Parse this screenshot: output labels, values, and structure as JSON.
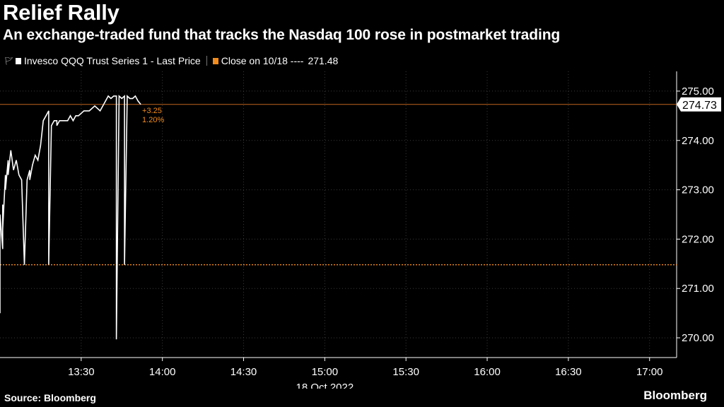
{
  "header": {
    "title": "Relief Rally",
    "subtitle": "An exchange-traded fund that tracks the Nasdaq 100 rose in postmarket trading"
  },
  "legend": {
    "series_label": "Invesco QQQ Trust Series 1 - Last Price",
    "close_label": "Close on 10/18 ----",
    "close_value": "271.48"
  },
  "footer": {
    "source": "Source: Bloomberg",
    "brand": "Bloomberg"
  },
  "colors": {
    "background": "#000000",
    "series": "#ffffff",
    "close_line": "#f28c1e",
    "grid": "#3a3a3a",
    "text": "#ffffff"
  },
  "chart_data": {
    "type": "line",
    "xlabel": "18 Oct 2022",
    "ylabel": "",
    "xlim": [
      "13:00",
      "17:10"
    ],
    "ylim": [
      269.6,
      275.4
    ],
    "x_ticks": [
      "13:30",
      "14:00",
      "14:30",
      "15:00",
      "15:30",
      "16:00",
      "16:30",
      "17:00"
    ],
    "y_ticks": [
      270,
      271,
      272,
      273,
      274,
      275
    ],
    "y_tick_labels": [
      "270.00",
      "271.00",
      "272.00",
      "273.00",
      "274.00",
      "275.00"
    ],
    "grid": "dotted",
    "legend_position": "top-left",
    "last_value": 274.73,
    "last_value_label": "274.73",
    "change_label": "+3.25",
    "change_pct_label": "1.20%",
    "reference_line": {
      "name": "Close on 10/18",
      "value": 271.48
    },
    "series": [
      {
        "name": "Invesco QQQ Trust Series 1 - Last Price",
        "x": [
          "13:00",
          "13:00",
          "13:00",
          "13:01",
          "13:01",
          "13:01",
          "13:02",
          "13:02",
          "13:03",
          "13:03",
          "13:04",
          "13:05",
          "13:06",
          "13:07",
          "13:08",
          "13:09",
          "13:10",
          "13:11",
          "13:11",
          "13:12",
          "13:13",
          "13:14",
          "13:15",
          "13:16",
          "13:17",
          "13:18",
          "13:18",
          "13:19",
          "13:20",
          "13:21",
          "13:21",
          "13:22",
          "13:23",
          "13:24",
          "13:25",
          "13:26",
          "13:27",
          "13:28",
          "13:29",
          "13:31",
          "13:33",
          "13:35",
          "13:37",
          "13:39",
          "13:40",
          "13:41",
          "13:42",
          "13:43",
          "13:43",
          "13:44",
          "13:44",
          "13:45",
          "13:46",
          "13:46",
          "13:47",
          "13:47",
          "13:48",
          "13:49",
          "13:50",
          "13:51",
          "13:52"
        ],
        "values": [
          270.5,
          271.3,
          272.5,
          271.8,
          272.7,
          272.2,
          273.3,
          273.0,
          273.6,
          273.3,
          273.8,
          273.4,
          273.6,
          273.3,
          273.2,
          271.48,
          273.2,
          273.4,
          273.2,
          273.5,
          273.7,
          273.6,
          273.9,
          274.4,
          274.5,
          274.6,
          271.48,
          274.3,
          274.4,
          274.4,
          274.3,
          274.4,
          274.4,
          274.4,
          274.4,
          274.5,
          274.4,
          274.5,
          274.5,
          274.6,
          274.6,
          274.7,
          274.6,
          274.8,
          274.9,
          274.85,
          274.9,
          274.9,
          269.97,
          274.85,
          274.9,
          274.85,
          274.9,
          271.48,
          274.85,
          274.9,
          274.85,
          274.85,
          274.9,
          274.8,
          274.73
        ]
      }
    ]
  }
}
